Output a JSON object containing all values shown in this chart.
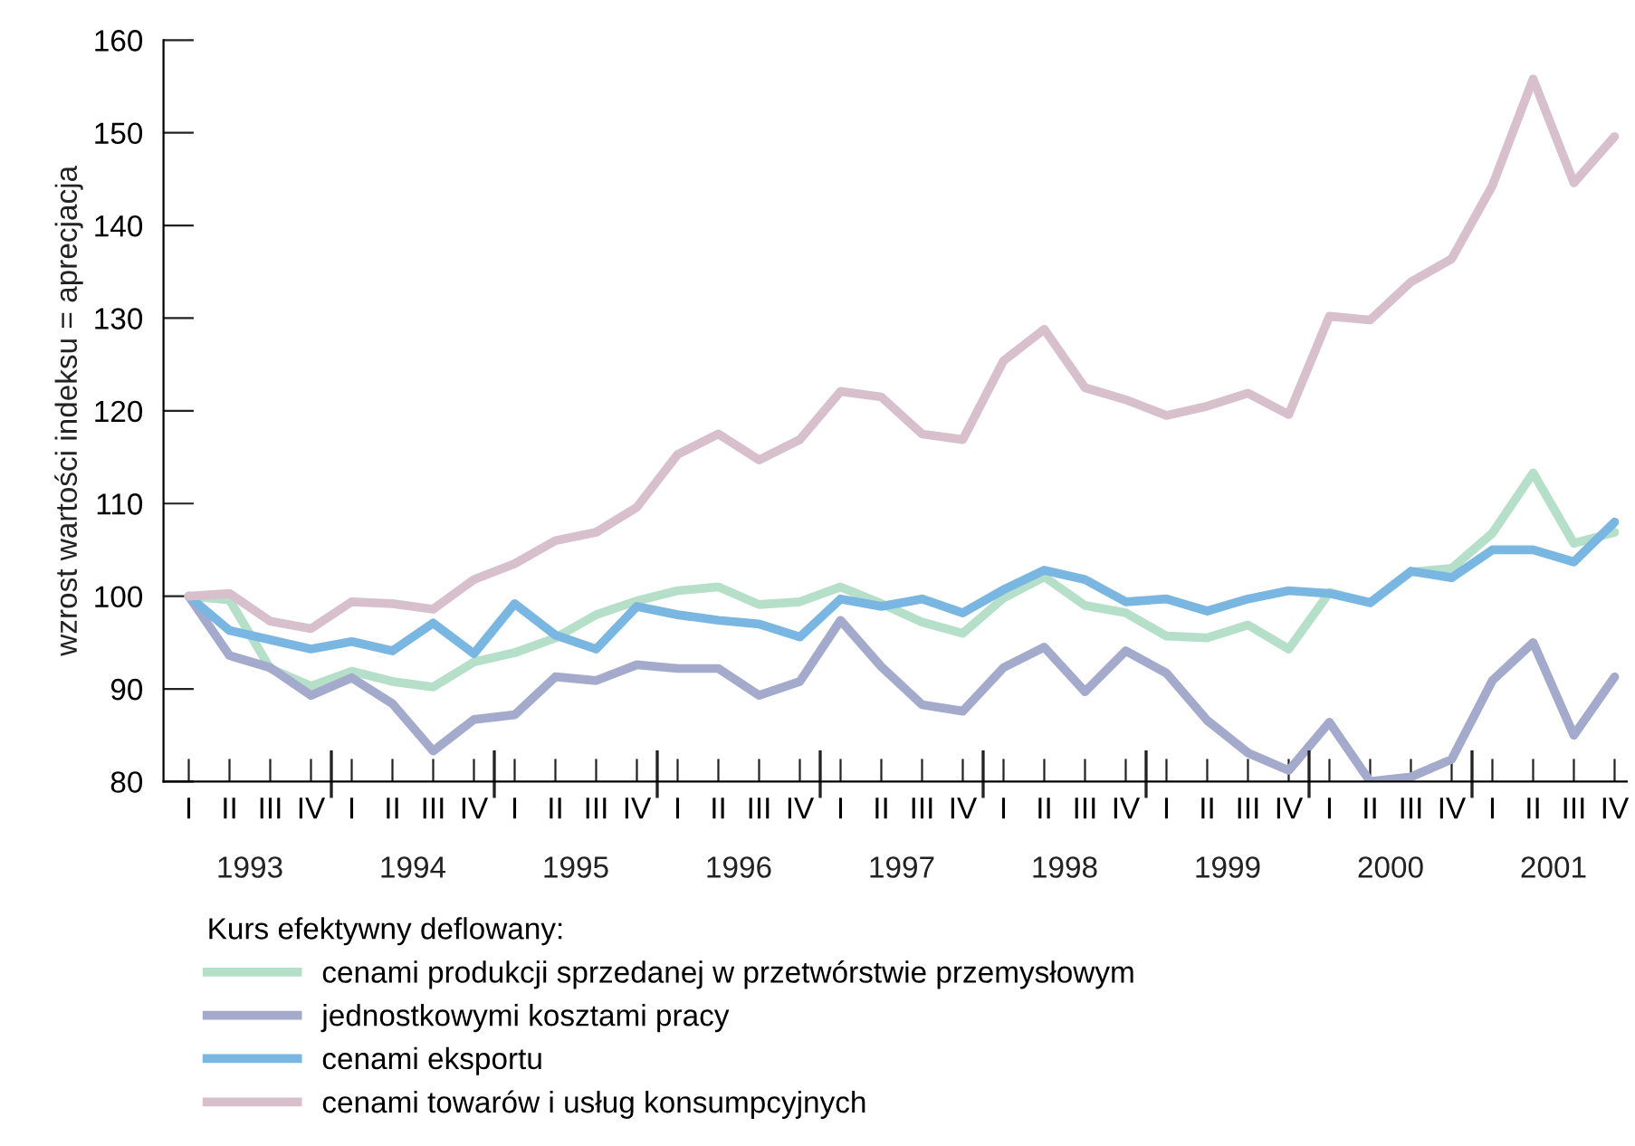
{
  "chart_data": {
    "type": "line",
    "ylabel": "wzrost wartości indeksu = aprecjacja",
    "legend_title": "Kurs efektywny deflowany:",
    "categories": [
      "I",
      "II",
      "III",
      "IV",
      "I",
      "II",
      "III",
      "IV",
      "I",
      "II",
      "III",
      "IV",
      "I",
      "II",
      "III",
      "IV",
      "I",
      "II",
      "III",
      "IV",
      "I",
      "II",
      "III",
      "IV",
      "I",
      "II",
      "III",
      "IV",
      "I",
      "II",
      "III",
      "IV",
      "I",
      "II",
      "III",
      "IV"
    ],
    "annotations": [
      "1993",
      "1994",
      "1995",
      "1996",
      "1997",
      "1998",
      "1999",
      "2000",
      "2001"
    ],
    "ylim": [
      80,
      160
    ],
    "yticks": [
      80,
      90,
      100,
      110,
      120,
      130,
      140,
      150,
      160
    ],
    "grid": false,
    "legend": "bottom",
    "marker": "none",
    "line_style": "solid",
    "series": [
      {
        "name": "cenami produkcji sprzedanej w przetwórstwie przemysłowym",
        "color": "#b5dfc8",
        "values": [
          100,
          99.6,
          92.2,
          90.3,
          91.9,
          90.8,
          90.2,
          92.9,
          93.9,
          95.5,
          98.0,
          99.5,
          100.6,
          101.0,
          99.1,
          99.4,
          101.0,
          99.2,
          97.2,
          96.0,
          99.8,
          102.1,
          99.0,
          98.2,
          95.7,
          95.5,
          96.9,
          94.3,
          100.4,
          99.3,
          102.6,
          103.0,
          106.8,
          113.3,
          105.7,
          106.9
        ]
      },
      {
        "name": "jednostkowymi kosztami pracy",
        "color": "#a4aacb",
        "values": [
          100,
          93.6,
          92.3,
          89.3,
          91.2,
          88.4,
          83.3,
          86.7,
          87.2,
          91.3,
          90.9,
          92.6,
          92.2,
          92.2,
          89.3,
          90.8,
          97.4,
          92.4,
          88.3,
          87.6,
          92.3,
          94.5,
          89.7,
          94.1,
          91.7,
          86.6,
          83.1,
          81.2,
          86.4,
          80.0,
          80.5,
          82.4,
          90.9,
          95.0,
          85.0,
          91.3
        ]
      },
      {
        "name": "cenami eksportu",
        "color": "#7ab6e2",
        "values": [
          100,
          96.3,
          95.3,
          94.3,
          95.1,
          94.1,
          97.1,
          93.8,
          99.2,
          95.8,
          94.3,
          98.9,
          98.0,
          97.4,
          97.0,
          95.6,
          99.7,
          98.9,
          99.7,
          98.2,
          100.7,
          102.8,
          101.8,
          99.4,
          99.7,
          98.4,
          99.7,
          100.6,
          100.3,
          99.3,
          102.7,
          102.0,
          105.0,
          105.0,
          103.7,
          108.0
        ]
      },
      {
        "name": "cenami towarów i usług konsumpcyjnych",
        "color": "#d8bfcc",
        "values": [
          100,
          100.3,
          97.3,
          96.5,
          99.4,
          99.2,
          98.6,
          101.8,
          103.5,
          106.0,
          106.9,
          109.6,
          115.3,
          117.5,
          114.7,
          116.9,
          122.1,
          121.5,
          117.5,
          116.9,
          125.4,
          128.8,
          122.5,
          121.2,
          119.5,
          120.5,
          121.9,
          119.6,
          130.2,
          129.8,
          133.9,
          136.4,
          144.3,
          155.8,
          144.6,
          149.6
        ]
      }
    ]
  }
}
